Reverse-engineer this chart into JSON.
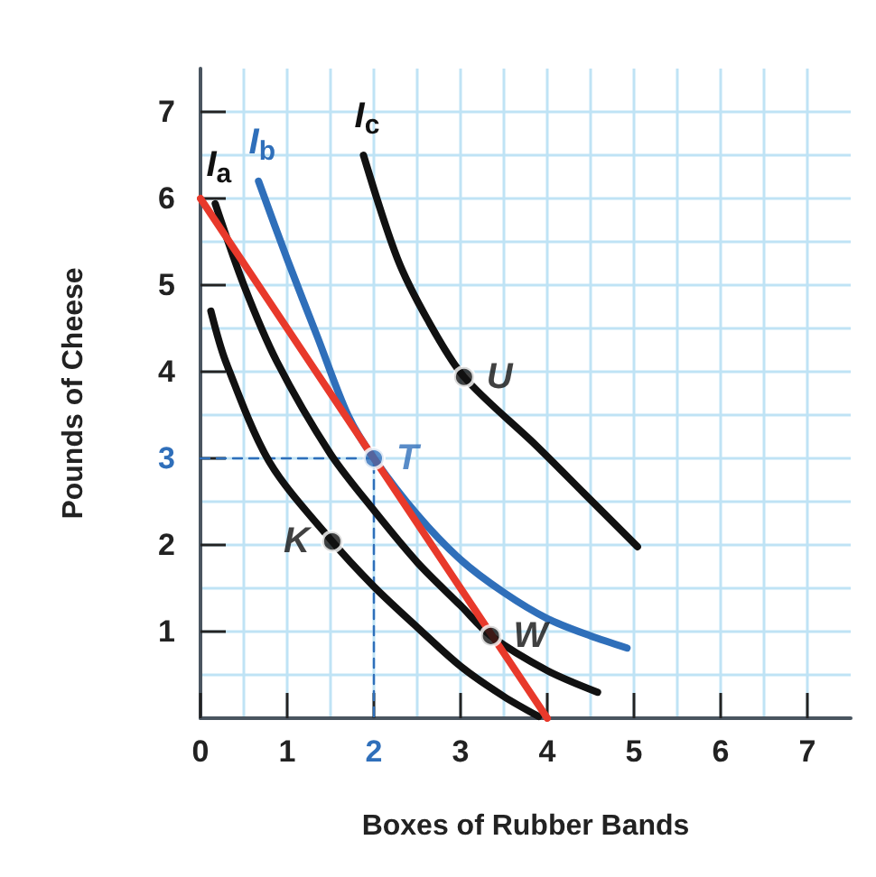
{
  "chart_data": {
    "type": "line",
    "xlabel": "Boxes of Rubber Bands",
    "ylabel": "Pounds of Cheese",
    "xlim": [
      0,
      7.5
    ],
    "ylim": [
      0,
      7.5
    ],
    "xticks": [
      0,
      1,
      2,
      3,
      4,
      5,
      6,
      7
    ],
    "yticks": [
      1,
      2,
      3,
      4,
      5,
      6,
      7
    ],
    "grid": true,
    "marker": "none",
    "line_style": "solid",
    "series": [
      {
        "type": "line",
        "line_style": "dashed",
        "color": "#2f6fba",
        "x": [
          0,
          2,
          2
        ],
        "values": [
          3,
          3,
          0
        ]
      },
      {
        "name": "I$_{a}$",
        "color": "#111111",
        "x": [
          0.17,
          0.5,
          0.88,
          1.5,
          2,
          2.5,
          3,
          3.35,
          4,
          4.58
        ],
        "values": [
          5.94,
          5.0,
          4.12,
          3.05,
          2.4,
          1.8,
          1.3,
          0.95,
          0.55,
          0.3
        ]
      },
      {
        "color": "#111111",
        "x": [
          0.12,
          0.29,
          0.8,
          1.52,
          2,
          2.5,
          3,
          3.5,
          3.9
        ],
        "values": [
          4.7,
          4.12,
          2.95,
          2.04,
          1.52,
          1.05,
          0.6,
          0.25,
          0.02
        ]
      },
      {
        "name": "I$_{b}$",
        "color": "#2f6fba",
        "x": [
          0.67,
          1,
          1.35,
          1.7,
          2,
          2.5,
          3,
          3.5,
          4,
          4.5,
          4.92
        ],
        "values": [
          6.2,
          5.3,
          4.4,
          3.5,
          3.0,
          2.35,
          1.83,
          1.45,
          1.15,
          0.95,
          0.81
        ]
      },
      {
        "name": "I$_{c}$",
        "color": "#111111",
        "x": [
          1.88,
          2.27,
          2.62,
          3.04,
          3.87,
          4.42,
          5.04
        ],
        "values": [
          6.5,
          5.31,
          4.6,
          3.94,
          3.15,
          2.6,
          1.98
        ]
      },
      {
        "color": "#e8392b",
        "x": [
          0,
          4
        ],
        "values": [
          6,
          0
        ]
      },
      {
        "type": "scatter",
        "marker": "circle",
        "name": "T",
        "color": "#2f6fba",
        "x": [
          2
        ],
        "values": [
          3
        ]
      },
      {
        "type": "scatter",
        "marker": "circle",
        "name": "U",
        "color": "#111111",
        "x": [
          3.04
        ],
        "values": [
          3.94
        ]
      },
      {
        "type": "scatter",
        "marker": "circle",
        "name": "W",
        "color": "#111111",
        "x": [
          3.35
        ],
        "values": [
          0.95
        ]
      },
      {
        "type": "scatter",
        "marker": "circle",
        "name": "K",
        "color": "#111111",
        "x": [
          1.52
        ],
        "values": [
          2.04
        ]
      }
    ]
  }
}
